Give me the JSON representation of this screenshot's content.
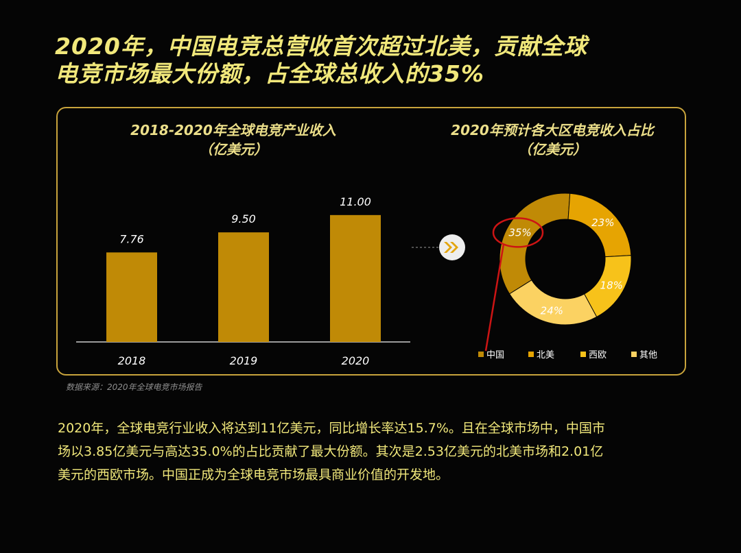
{
  "headline": {
    "line1": "2020年，中国电竞总营收首次超过北美，贡献全球",
    "line2": "电竞市场最大份额，占全球总收入的35%"
  },
  "colors": {
    "background": "#050505",
    "headline": "#f1e87b",
    "border": "#c9a43c",
    "bar": "#c08a06",
    "china": "#c08a06",
    "north_america": "#e6a402",
    "western_europe": "#f7c21a",
    "other": "#fbd262",
    "highlight_circle": "#cc1414"
  },
  "chart_data": [
    {
      "type": "bar",
      "title": "2018-2020年全球电竞产业收入",
      "subtitle": "（亿美元）",
      "categories": [
        "2018",
        "2019",
        "2020"
      ],
      "values": [
        7.76,
        9.5,
        11.0
      ],
      "value_labels": [
        "7.76",
        "9.50",
        "11.00"
      ],
      "ylim": [
        0,
        12
      ],
      "grid": false
    },
    {
      "type": "pie",
      "variant": "donut",
      "title": "2020年预计各大区电竞收入占比",
      "subtitle": "（亿美元）",
      "labels": [
        "中国",
        "北美",
        "西欧",
        "其他"
      ],
      "values": [
        35,
        23,
        18,
        24
      ],
      "value_labels": [
        "35%",
        "23%",
        "18%",
        "24%"
      ],
      "legend_position": "bottom",
      "highlight": "中国"
    }
  ],
  "source": "数据来源：2020年全球电竞市场报告",
  "summary": {
    "line1": "2020年，全球电竞行业收入将达到11亿美元，同比增长率达15.7%。且在全球市场中，中国市",
    "line2": "场以3.85亿美元与高达35.0%的占比贡献了最大份额。其次是2.53亿美元的北美市场和2.01亿",
    "line3": "美元的西欧市场。中国正成为全球电竞市场最具商业价值的开发地。"
  }
}
